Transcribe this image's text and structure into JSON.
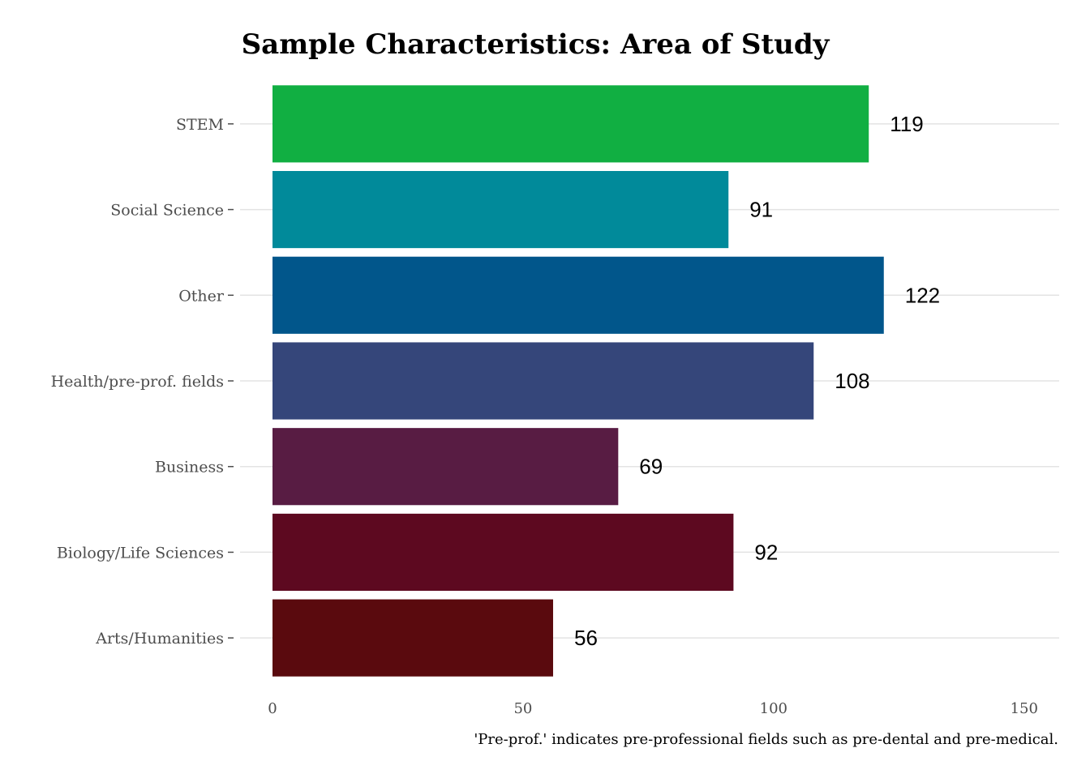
{
  "chart_data": {
    "type": "bar",
    "orientation": "horizontal",
    "title": "Sample Characteristics: Area of Study",
    "caption": "'Pre-prof.' indicates pre-professional fields such as pre-dental and pre-medical.",
    "xlabel": "",
    "ylabel": "",
    "xlim": [
      0,
      157
    ],
    "x_ticks": [
      0,
      50,
      100,
      150
    ],
    "categories": [
      "STEM",
      "Social Science",
      "Other",
      "Health/pre-prof. fields",
      "Business",
      "Biology/Life Sciences",
      "Arts/Humanities"
    ],
    "values": [
      119,
      91,
      122,
      108,
      69,
      92,
      56
    ],
    "colors": [
      "#11af42",
      "#018a9a",
      "#01568b",
      "#35467a",
      "#581c43",
      "#5d0920",
      "#5a0a0e"
    ],
    "grid": "horizontal-major",
    "legend": "none",
    "data_labels": true
  }
}
